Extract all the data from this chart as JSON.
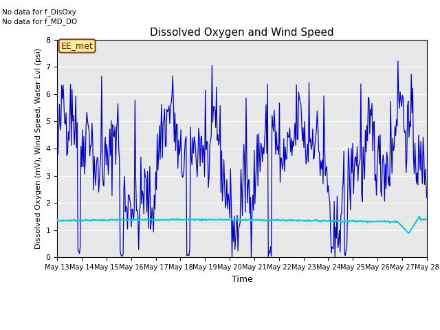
{
  "title": "Dissolved Oxygen and Wind Speed",
  "ylabel": "Dissolved Oxygen (mV), Wind Speed, Water Lvl (psi)",
  "xlabel": "Time",
  "ylim": [
    0.0,
    8.0
  ],
  "yticks": [
    0.0,
    1.0,
    2.0,
    3.0,
    4.0,
    5.0,
    6.0,
    7.0,
    8.0
  ],
  "annotation_line1": "No data for f_DisOxy",
  "annotation_line2": "No data for f_MD_DO",
  "box_label": "EE_met",
  "legend_ws_color": "#0000cc",
  "legend_wl_color": "#00ccdd",
  "bg_color": "#e8e8e8",
  "xtick_labels": [
    "May 13",
    "May 14",
    "May 15",
    "May 16",
    "May 17",
    "May 18",
    "May 19",
    "May 20",
    "May 21",
    "May 22",
    "May 23",
    "May 24",
    "May 25",
    "May 26",
    "May 27",
    "May 28"
  ],
  "ws_seed": 42,
  "wl_seed": 7,
  "n_points": 500,
  "title_fontsize": 11,
  "axis_fontsize": 8,
  "tick_fontsize": 7,
  "legend_fontsize": 9
}
